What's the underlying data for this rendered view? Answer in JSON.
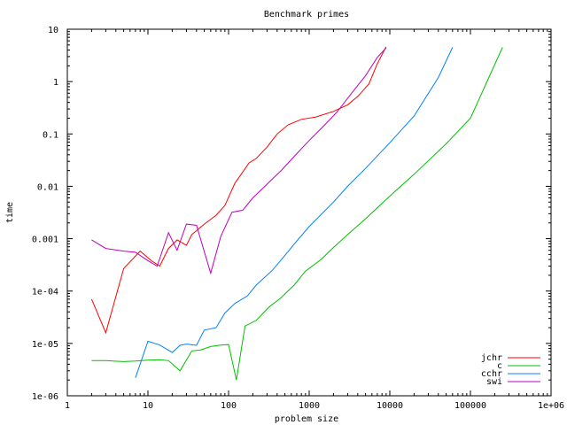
{
  "chart_data": {
    "type": "line",
    "title": "Benchmark primes",
    "xlabel": "problem size",
    "ylabel": "time",
    "x_scale": "log",
    "y_scale": "log",
    "xlim": [
      1,
      1000000
    ],
    "ylim": [
      1e-06,
      10
    ],
    "x_ticks": [
      {
        "v": 1,
        "label": "1"
      },
      {
        "v": 10,
        "label": "10"
      },
      {
        "v": 100,
        "label": "100"
      },
      {
        "v": 1000,
        "label": "1000"
      },
      {
        "v": 10000,
        "label": "10000"
      },
      {
        "v": 100000,
        "label": "100000"
      },
      {
        "v": 1000000,
        "label": "1e+06"
      }
    ],
    "y_ticks": [
      {
        "v": 1e-06,
        "label": "1e-06"
      },
      {
        "v": 1e-05,
        "label": "1e-05"
      },
      {
        "v": 0.0001,
        "label": "1e-04"
      },
      {
        "v": 0.001,
        "label": "0.001"
      },
      {
        "v": 0.01,
        "label": "0.01"
      },
      {
        "v": 0.1,
        "label": "0.1"
      },
      {
        "v": 1,
        "label": "1"
      },
      {
        "v": 10,
        "label": "10"
      }
    ],
    "grid": false,
    "legend_position": "bottom-right",
    "series": [
      {
        "name": "jchr",
        "color": "#ff0000",
        "points": [
          [
            2,
            7e-05
          ],
          [
            3,
            1.6e-05
          ],
          [
            5,
            0.00027
          ],
          [
            8,
            0.00058
          ],
          [
            11,
            0.00038
          ],
          [
            14,
            0.0003
          ],
          [
            18,
            0.00065
          ],
          [
            23,
            0.00095
          ],
          [
            30,
            0.00075
          ],
          [
            35,
            0.0012
          ],
          [
            50,
            0.0019
          ],
          [
            70,
            0.0028
          ],
          [
            90,
            0.0043
          ],
          [
            120,
            0.0115
          ],
          [
            180,
            0.028
          ],
          [
            220,
            0.034
          ],
          [
            300,
            0.056
          ],
          [
            400,
            0.1
          ],
          [
            550,
            0.15
          ],
          [
            800,
            0.19
          ],
          [
            1200,
            0.21
          ],
          [
            2000,
            0.27
          ],
          [
            3000,
            0.36
          ],
          [
            4000,
            0.52
          ],
          [
            5500,
            0.9
          ],
          [
            7000,
            2.2
          ],
          [
            9000,
            4.6
          ]
        ]
      },
      {
        "name": "c",
        "color": "#00c000",
        "points": [
          [
            2,
            4.7e-06
          ],
          [
            3,
            4.7e-06
          ],
          [
            5,
            4.5e-06
          ],
          [
            7,
            4.6e-06
          ],
          [
            10,
            4.8e-06
          ],
          [
            14,
            4.9e-06
          ],
          [
            18,
            4.7e-06
          ],
          [
            25,
            3e-06
          ],
          [
            35,
            7.2e-06
          ],
          [
            45,
            7.5e-06
          ],
          [
            60,
            8.7e-06
          ],
          [
            80,
            9.3e-06
          ],
          [
            100,
            9.5e-06
          ],
          [
            125,
            2e-06
          ],
          [
            160,
            2.15e-05
          ],
          [
            220,
            2.75e-05
          ],
          [
            320,
            5e-05
          ],
          [
            450,
            7.5e-05
          ],
          [
            650,
            0.00013
          ],
          [
            900,
            0.00024
          ],
          [
            1400,
            0.0004
          ],
          [
            2000,
            0.00068
          ],
          [
            3000,
            0.0012
          ],
          [
            5000,
            0.0024
          ],
          [
            10000,
            0.0065
          ],
          [
            20000,
            0.017
          ],
          [
            50000,
            0.065
          ],
          [
            100000,
            0.2
          ],
          [
            250000,
            4.5
          ]
        ]
      },
      {
        "name": "cchr",
        "color": "#0080ff",
        "points": [
          [
            7,
            2.2e-06
          ],
          [
            10,
            1.1e-05
          ],
          [
            14,
            9.3e-06
          ],
          [
            20,
            6.7e-06
          ],
          [
            25,
            9.2e-06
          ],
          [
            30,
            9.7e-06
          ],
          [
            40,
            9.2e-06
          ],
          [
            50,
            1.8e-05
          ],
          [
            70,
            2e-05
          ],
          [
            90,
            3.8e-05
          ],
          [
            120,
            5.8e-05
          ],
          [
            170,
            8e-05
          ],
          [
            220,
            0.00013
          ],
          [
            350,
            0.00025
          ],
          [
            500,
            0.00048
          ],
          [
            700,
            0.0009
          ],
          [
            1000,
            0.0017
          ],
          [
            1500,
            0.0032
          ],
          [
            2000,
            0.005
          ],
          [
            3000,
            0.01
          ],
          [
            5000,
            0.022
          ],
          [
            10000,
            0.068
          ],
          [
            20000,
            0.22
          ],
          [
            40000,
            1.2
          ],
          [
            60000,
            4.5
          ]
        ]
      },
      {
        "name": "swi",
        "color": "#c000c0",
        "points": [
          [
            2,
            0.00095
          ],
          [
            3,
            0.00065
          ],
          [
            5,
            0.00058
          ],
          [
            7,
            0.00055
          ],
          [
            10,
            0.00038
          ],
          [
            13,
            0.0003
          ],
          [
            18,
            0.0013
          ],
          [
            23,
            0.0006
          ],
          [
            30,
            0.0019
          ],
          [
            40,
            0.0018
          ],
          [
            60,
            0.00022
          ],
          [
            80,
            0.0011
          ],
          [
            110,
            0.0032
          ],
          [
            150,
            0.0035
          ],
          [
            200,
            0.006
          ],
          [
            300,
            0.011
          ],
          [
            450,
            0.02
          ],
          [
            700,
            0.042
          ],
          [
            1000,
            0.075
          ],
          [
            1500,
            0.14
          ],
          [
            2200,
            0.26
          ],
          [
            3500,
            0.65
          ],
          [
            5000,
            1.3
          ],
          [
            7000,
            2.9
          ],
          [
            9000,
            4.4
          ]
        ]
      }
    ]
  }
}
